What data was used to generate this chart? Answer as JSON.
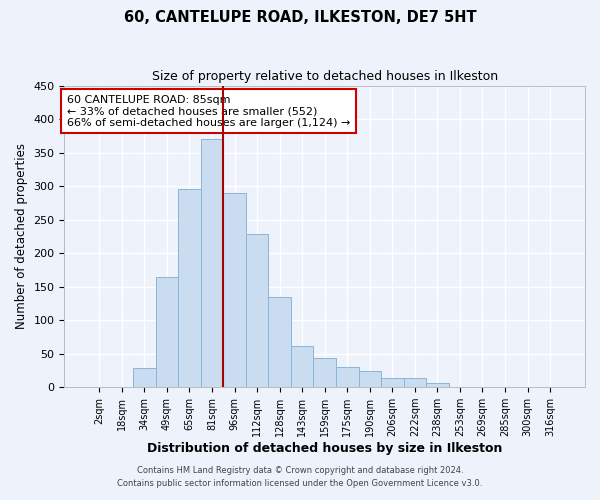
{
  "title": "60, CANTELUPE ROAD, ILKESTON, DE7 5HT",
  "subtitle": "Size of property relative to detached houses in Ilkeston",
  "xlabel": "Distribution of detached houses by size in Ilkeston",
  "ylabel": "Number of detached properties",
  "bar_color": "#c9dcf0",
  "bar_edge_color": "#8ab4d8",
  "categories": [
    "2sqm",
    "18sqm",
    "34sqm",
    "49sqm",
    "65sqm",
    "81sqm",
    "96sqm",
    "112sqm",
    "128sqm",
    "143sqm",
    "159sqm",
    "175sqm",
    "190sqm",
    "206sqm",
    "222sqm",
    "238sqm",
    "253sqm",
    "269sqm",
    "285sqm",
    "300sqm",
    "316sqm"
  ],
  "values": [
    0,
    0,
    28,
    165,
    295,
    370,
    290,
    228,
    135,
    62,
    43,
    30,
    24,
    14,
    14,
    6,
    0,
    0,
    0,
    0,
    0
  ],
  "ylim": [
    0,
    450
  ],
  "yticks": [
    0,
    50,
    100,
    150,
    200,
    250,
    300,
    350,
    400,
    450
  ],
  "vline_color": "#aa0000",
  "annotation_line1": "60 CANTELUPE ROAD: 85sqm",
  "annotation_line2": "← 33% of detached houses are smaller (552)",
  "annotation_line3": "66% of semi-detached houses are larger (1,124) →",
  "annotation_box_color": "white",
  "annotation_box_edge_color": "#cc0000",
  "footer_line1": "Contains HM Land Registry data © Crown copyright and database right 2024.",
  "footer_line2": "Contains public sector information licensed under the Open Government Licence v3.0.",
  "background_color": "#eef2fa",
  "grid_color": "white",
  "fig_width": 6.0,
  "fig_height": 5.0
}
